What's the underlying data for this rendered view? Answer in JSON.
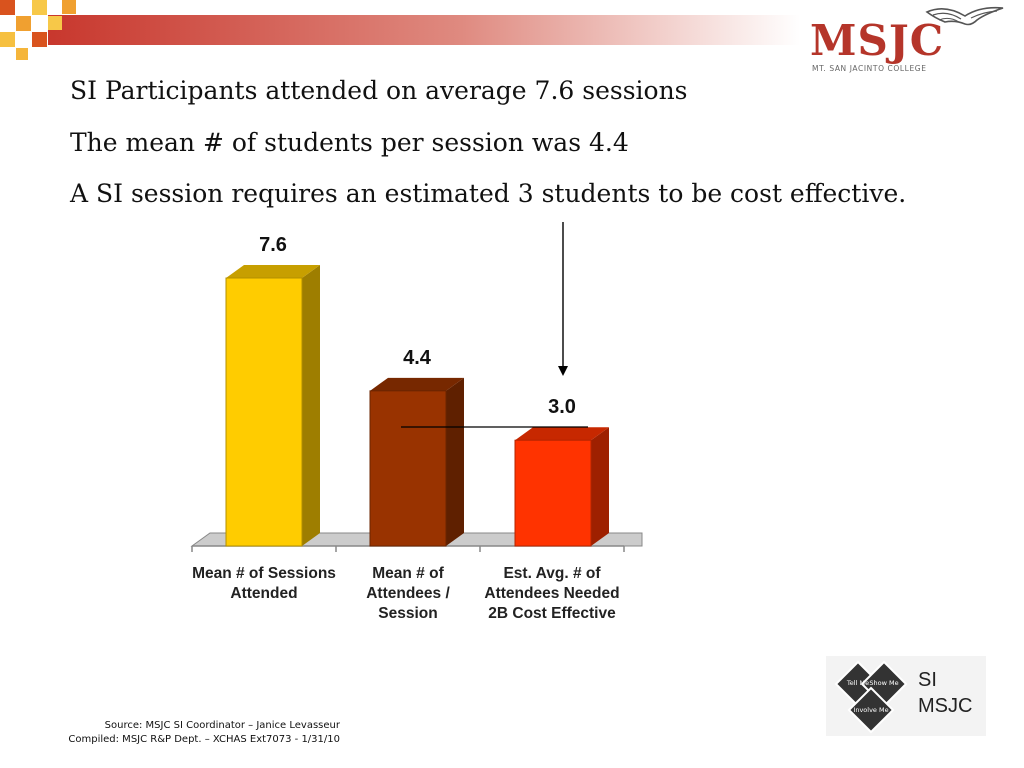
{
  "header": {
    "accent_color": "#c8372d",
    "logo": {
      "text": "MSJC",
      "subtitle": "MT. SAN JACINTO COLLEGE",
      "color": "#b5352a"
    }
  },
  "headlines": [
    "SI Participants attended on average 7.6 sessions",
    "The mean # of students per session was 4.4",
    "A SI session requires an estimated 3 students to be cost effective."
  ],
  "chart_data": {
    "type": "bar",
    "categories": [
      [
        "Mean # of Sessions",
        "Attended"
      ],
      [
        "Mean # of",
        "Attendees /",
        "Session"
      ],
      [
        "Est. Avg. # of",
        "Attendees Needed",
        "2B Cost Effective"
      ]
    ],
    "values": [
      7.6,
      4.4,
      3.0
    ],
    "data_labels": [
      "7.6",
      "4.4",
      "3.0"
    ],
    "colors": [
      "#ffcc00",
      "#993300",
      "#ff3300"
    ],
    "title": "",
    "xlabel": "",
    "ylabel": "",
    "ylim": [
      0,
      7.6
    ],
    "grid": false,
    "legend": "none",
    "style": "3d"
  },
  "footer": {
    "source_line1": "Source: MSJC SI Coordinator – Janice Levasseur",
    "source_line2": "Compiled: MSJC R&P Dept. – XCHAS  Ext7073 -  1/31/10"
  },
  "si_logo": {
    "quadrants": [
      "Tell Me",
      "Show Me",
      "Involve Me"
    ],
    "word1": "SI",
    "word2": "MSJC"
  }
}
